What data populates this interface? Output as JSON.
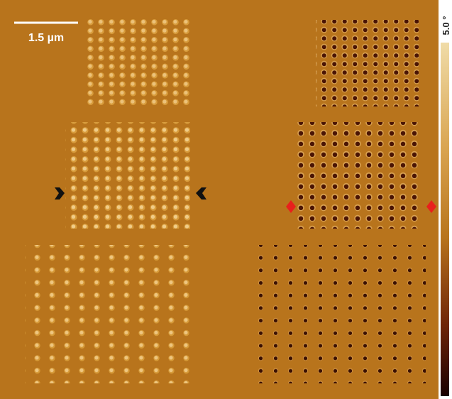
{
  "scale_bar": {
    "label": "1.5 µm"
  },
  "colorbar": {
    "label": "5.0 °"
  }
}
